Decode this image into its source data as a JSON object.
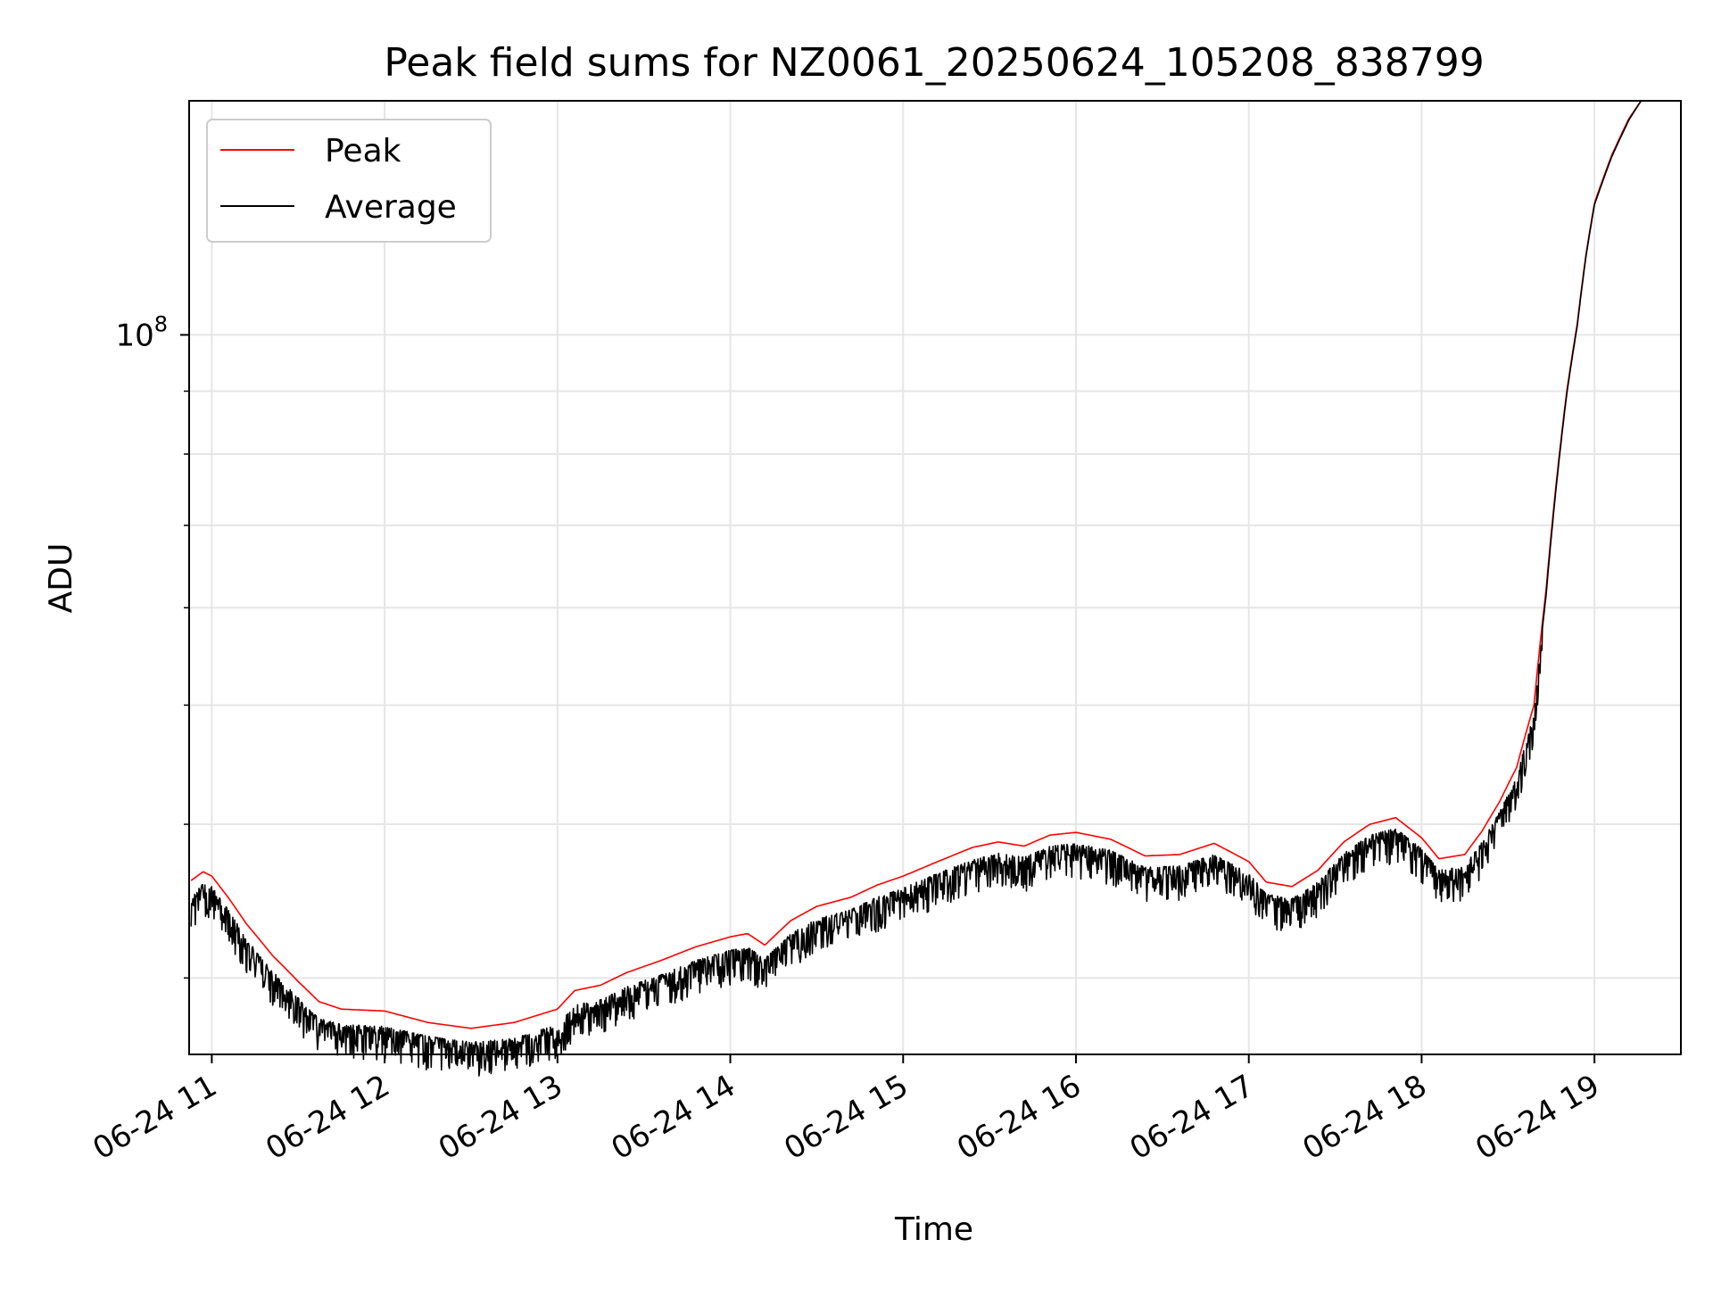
{
  "chart_data": {
    "type": "line",
    "title": "Peak field sums for NZ0061_20250624_105208_838799",
    "xlabel": "Time",
    "ylabel": "ADU",
    "x_axis": {
      "kind": "datetime",
      "start": "2025-06-24T10:52:08",
      "range": [
        "2025-06-24T10:52:08",
        "2025-06-24T19:30:00"
      ],
      "ticks": [
        "06-24 11",
        "06-24 12",
        "06-24 13",
        "06-24 14",
        "06-24 15",
        "06-24 16",
        "06-24 17",
        "06-24 18",
        "06-24 19"
      ],
      "tick_hours": [
        11,
        12,
        13,
        14,
        15,
        16,
        17,
        18,
        19
      ],
      "tick_rotation_deg": 30
    },
    "y_axis": {
      "scale": "log",
      "ylim": [
        26000000,
        155000000
      ],
      "major_ticks": [
        {
          "value": 100000000,
          "label_base": "10",
          "label_exp": "8"
        }
      ],
      "minor_ticks": [
        30000000,
        40000000,
        50000000,
        60000000,
        70000000,
        80000000,
        90000000,
        200000000
      ]
    },
    "grid": true,
    "legend": {
      "position": "top-left",
      "entries": [
        {
          "label": "Peak",
          "color": "#ff0000"
        },
        {
          "label": "Average",
          "color": "#000000"
        }
      ]
    },
    "series": [
      {
        "name": "Peak",
        "color": "#ff0000",
        "x_hours": [
          10.88,
          10.95,
          11.0,
          11.1,
          11.2,
          11.35,
          11.5,
          11.62,
          11.75,
          12.0,
          12.25,
          12.5,
          12.75,
          13.0,
          13.1,
          13.25,
          13.4,
          13.6,
          13.8,
          14.0,
          14.1,
          14.2,
          14.35,
          14.5,
          14.7,
          14.85,
          15.0,
          15.2,
          15.4,
          15.55,
          15.7,
          15.85,
          16.0,
          16.2,
          16.4,
          16.6,
          16.8,
          17.0,
          17.1,
          17.25,
          17.4,
          17.55,
          17.7,
          17.85,
          18.0,
          18.1,
          18.25,
          18.35,
          18.45,
          18.55,
          18.65,
          18.72,
          18.78,
          18.84,
          18.9,
          18.95,
          19.0,
          19.1,
          19.2,
          19.27
        ],
        "values": [
          36000000,
          36600000,
          36300000,
          34800000,
          33200000,
          31300000,
          29800000,
          28700000,
          28300000,
          28200000,
          27600000,
          27300000,
          27600000,
          28300000,
          29300000,
          29600000,
          30300000,
          31000000,
          31800000,
          32400000,
          32600000,
          31900000,
          33400000,
          34300000,
          34900000,
          35700000,
          36300000,
          37300000,
          38300000,
          38700000,
          38400000,
          39200000,
          39400000,
          38900000,
          37700000,
          37800000,
          38600000,
          37300000,
          35900000,
          35600000,
          36700000,
          38700000,
          40000000,
          40500000,
          39000000,
          37500000,
          37800000,
          39500000,
          41700000,
          44500000,
          50000000,
          62000000,
          76000000,
          90000000,
          102000000,
          116000000,
          128000000,
          140000000,
          150000000,
          155000000
        ]
      },
      {
        "name": "Average",
        "color": "#000000",
        "x_hours": [
          10.88,
          10.95,
          11.0,
          11.1,
          11.2,
          11.35,
          11.5,
          11.62,
          11.75,
          12.0,
          12.25,
          12.5,
          12.75,
          13.0,
          13.1,
          13.25,
          13.4,
          13.6,
          13.8,
          14.0,
          14.1,
          14.2,
          14.35,
          14.5,
          14.7,
          14.85,
          15.0,
          15.2,
          15.4,
          15.55,
          15.7,
          15.85,
          16.0,
          16.2,
          16.4,
          16.6,
          16.8,
          17.0,
          17.1,
          17.25,
          17.4,
          17.55,
          17.7,
          17.85,
          18.0,
          18.1,
          18.25,
          18.35,
          18.45,
          18.55,
          18.65,
          18.72,
          18.78,
          18.84,
          18.9,
          18.95,
          19.0,
          19.1,
          19.2,
          19.27
        ],
        "values": [
          35000000,
          35800000,
          35600000,
          34000000,
          32300000,
          30400000,
          28900000,
          27800000,
          27500000,
          27400000,
          26900000,
          26600000,
          26800000,
          27500000,
          28500000,
          28800000,
          29500000,
          30200000,
          31000000,
          31600000,
          31800000,
          31100000,
          32600000,
          33500000,
          34100000,
          34900000,
          35500000,
          36500000,
          37400000,
          37900000,
          37600000,
          38400000,
          38600000,
          38100000,
          36900000,
          37000000,
          37800000,
          36500000,
          35100000,
          34800000,
          35900000,
          37900000,
          39200000,
          39700000,
          38200000,
          36700000,
          37000000,
          38700000,
          40900000,
          43700000,
          49300000,
          61400000,
          75500000,
          89600000,
          101600000,
          115600000,
          127600000,
          139600000,
          149600000,
          155000000
        ]
      }
    ]
  }
}
